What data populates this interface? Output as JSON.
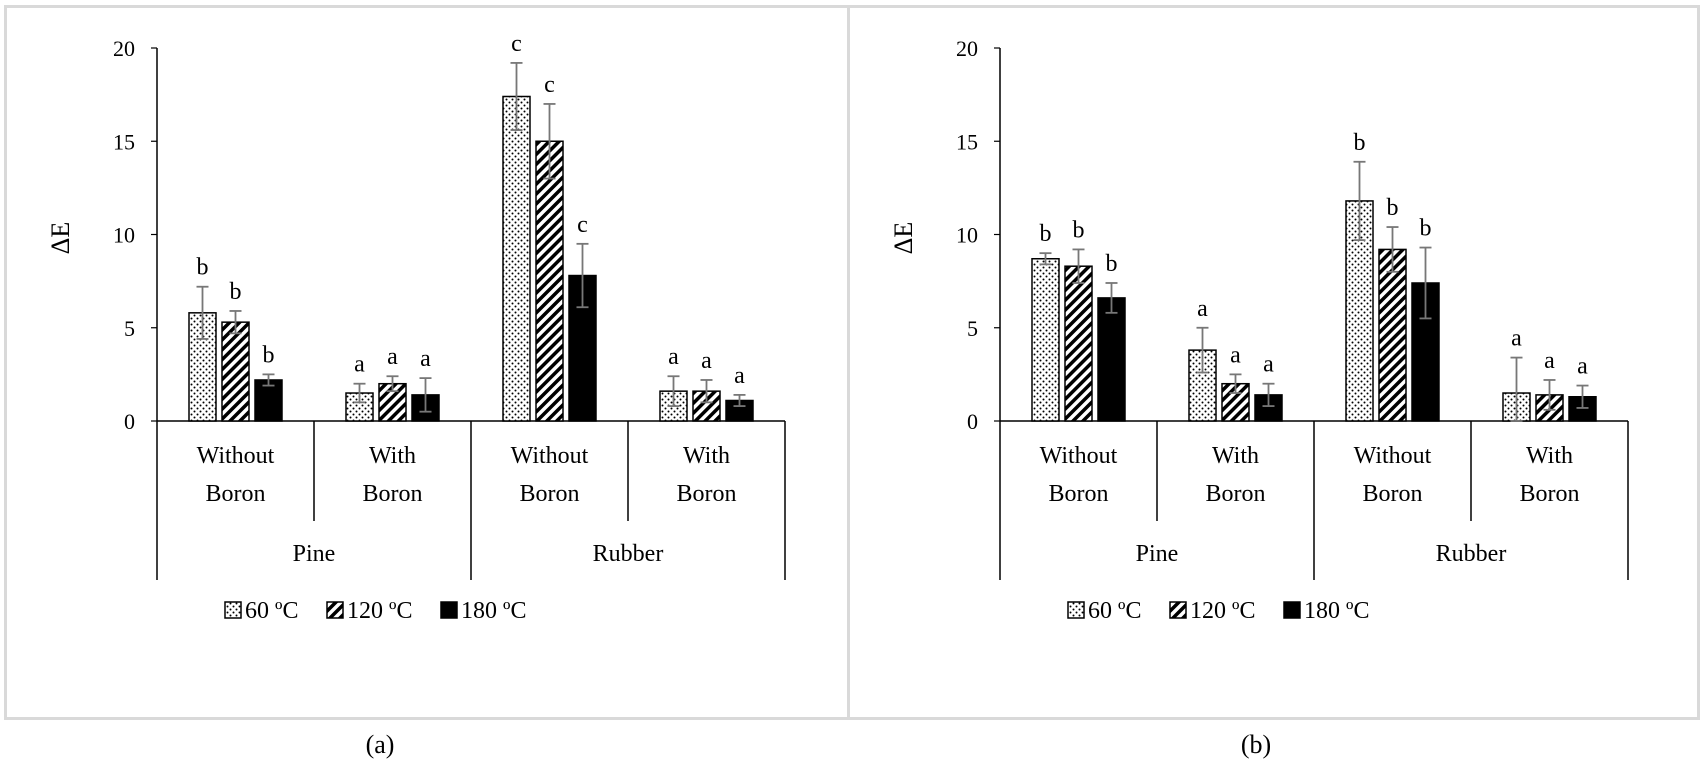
{
  "captions": [
    "(a)",
    "(b)"
  ],
  "chart_data": [
    {
      "type": "bar",
      "ylabel": "ΔE",
      "ylim": [
        0,
        20
      ],
      "yticks": [
        0,
        5,
        10,
        15,
        20
      ],
      "groups": [
        {
          "wood": "Pine",
          "categories": [
            "Without Boron",
            "With Boron"
          ]
        },
        {
          "wood": "Rubber",
          "categories": [
            "Without Boron",
            "With Boron"
          ]
        }
      ],
      "categories": [
        "Pine Without Boron",
        "Pine With Boron",
        "Rubber Without Boron",
        "Rubber With Boron"
      ],
      "series": [
        {
          "name": "60 ºC",
          "pattern": "dots",
          "values": [
            5.8,
            1.5,
            17.4,
            1.6
          ],
          "errors": [
            1.4,
            0.5,
            1.8,
            0.8
          ],
          "labels": [
            "b",
            "a",
            "c",
            "a"
          ]
        },
        {
          "name": "120 ºC",
          "pattern": "hatch",
          "values": [
            5.3,
            2.0,
            15.0,
            1.6
          ],
          "errors": [
            0.6,
            0.4,
            2.0,
            0.6
          ],
          "labels": [
            "b",
            "a",
            "c",
            "a"
          ]
        },
        {
          "name": "180 ºC",
          "pattern": "solid",
          "values": [
            2.2,
            1.4,
            7.8,
            1.1
          ],
          "errors": [
            0.3,
            0.9,
            1.7,
            0.3
          ],
          "labels": [
            "b",
            "a",
            "c",
            "a"
          ]
        }
      ],
      "legend": "bottom"
    },
    {
      "type": "bar",
      "ylabel": "ΔE",
      "ylim": [
        0,
        20
      ],
      "yticks": [
        0,
        5,
        10,
        15,
        20
      ],
      "groups": [
        {
          "wood": "Pine",
          "categories": [
            "Without Boron",
            "With Boron"
          ]
        },
        {
          "wood": "Rubber",
          "categories": [
            "Without Boron",
            "With Boron"
          ]
        }
      ],
      "categories": [
        "Pine Without Boron",
        "Pine With Boron",
        "Rubber Without Boron",
        "Rubber With Boron"
      ],
      "series": [
        {
          "name": "60 ºC",
          "pattern": "dots",
          "values": [
            8.7,
            3.8,
            11.8,
            1.5
          ],
          "errors": [
            0.3,
            1.2,
            2.1,
            1.9
          ],
          "labels": [
            "b",
            "a",
            "b",
            "a"
          ]
        },
        {
          "name": "120 ºC",
          "pattern": "hatch",
          "values": [
            8.3,
            2.0,
            9.2,
            1.4
          ],
          "errors": [
            0.9,
            0.5,
            1.2,
            0.8
          ],
          "labels": [
            "b",
            "a",
            "b",
            "a"
          ]
        },
        {
          "name": "180 ºC",
          "pattern": "solid",
          "values": [
            6.6,
            1.4,
            7.4,
            1.3
          ],
          "errors": [
            0.8,
            0.6,
            1.9,
            0.6
          ],
          "labels": [
            "b",
            "a",
            "b",
            "a"
          ]
        }
      ],
      "legend": "bottom"
    }
  ]
}
